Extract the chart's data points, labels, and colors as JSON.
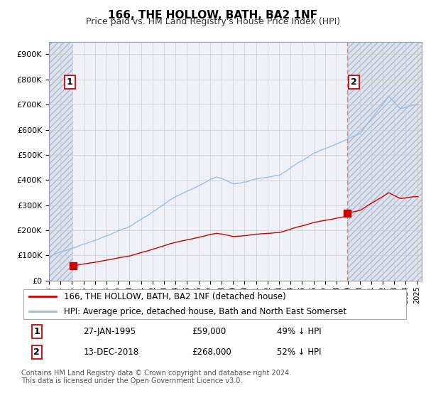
{
  "title": "166, THE HOLLOW, BATH, BA2 1NF",
  "subtitle": "Price paid vs. HM Land Registry's House Price Index (HPI)",
  "hpi_label": "HPI: Average price, detached house, Bath and North East Somerset",
  "price_label": "166, THE HOLLOW, BATH, BA2 1NF (detached house)",
  "footer": "Contains HM Land Registry data © Crown copyright and database right 2024.\nThis data is licensed under the Open Government Licence v3.0.",
  "point1_date": "27-JAN-1995",
  "point1_price": 59000,
  "point1_label": "49% ↓ HPI",
  "point2_date": "13-DEC-2018",
  "point2_price": 268000,
  "point2_label": "52% ↓ HPI",
  "ylim": [
    0,
    950000
  ],
  "xlim_start": 1993.0,
  "xlim_end": 2025.4,
  "sale1_year": 1995.07,
  "sale2_year": 2018.95,
  "hpi_color": "#9ab8d8",
  "price_color": "#cc0000",
  "dashed_line_color": "#e08080",
  "grid_color": "#cccccc",
  "plot_bg": "#eef2f8",
  "hatch_bg": "#dde4ef",
  "title_fontsize": 11,
  "subtitle_fontsize": 9,
  "legend_fontsize": 8.5,
  "table_fontsize": 8.5,
  "footer_fontsize": 7
}
